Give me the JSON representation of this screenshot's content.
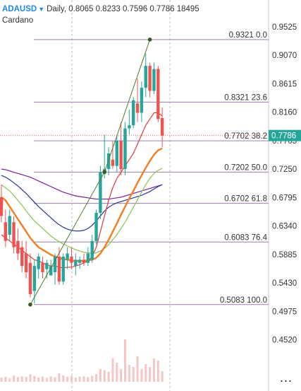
{
  "header": {
    "symbol": "ADAUSD",
    "caret_icon": "caret-down-icon",
    "ohlcv": "Daily, 0.8065 0.8233 0.7596 0.7786 18495",
    "subtitle": "Cardano"
  },
  "menu": {
    "icon": "more-horizontal-icon",
    "label": "..."
  },
  "chart_data": {
    "type": "candlestick",
    "title": "ADAUSD Daily",
    "subtitle": "Cardano",
    "ohlc_header": {
      "open": 0.8065,
      "high": 0.8233,
      "low": 0.7596,
      "close": 0.7786,
      "volume": 18495
    },
    "last_price": "0.7786",
    "ylim": [
      0.43,
      0.975
    ],
    "y_ticks": [
      "0.9525",
      "0.9070",
      "0.8615",
      "0.8160",
      "0.7705",
      "0.7250",
      "0.6795",
      "0.6340",
      "0.5885",
      "0.5430",
      "0.4975",
      "0.4520"
    ],
    "fib_levels": [
      {
        "price": 0.9321,
        "label": "0.9321 0.0"
      },
      {
        "price": 0.8321,
        "label": "0.8321 23.6"
      },
      {
        "price": 0.7702,
        "label": "0.7702 38.2"
      },
      {
        "price": 0.7202,
        "label": "0.7202 50.0"
      },
      {
        "price": 0.6702,
        "label": "0.6702 61.8"
      },
      {
        "price": 0.6083,
        "label": "0.6083 76.4"
      },
      {
        "price": 0.5083,
        "label": "0.5083 100.0"
      }
    ],
    "candles": [
      {
        "o": 0.68,
        "h": 0.7,
        "l": 0.64,
        "c": 0.65
      },
      {
        "o": 0.64,
        "h": 0.66,
        "l": 0.6,
        "c": 0.61
      },
      {
        "o": 0.62,
        "h": 0.66,
        "l": 0.61,
        "c": 0.65
      },
      {
        "o": 0.64,
        "h": 0.65,
        "l": 0.59,
        "c": 0.6
      },
      {
        "o": 0.61,
        "h": 0.63,
        "l": 0.58,
        "c": 0.59
      },
      {
        "o": 0.6,
        "h": 0.61,
        "l": 0.56,
        "c": 0.57
      },
      {
        "o": 0.59,
        "h": 0.61,
        "l": 0.55,
        "c": 0.56
      },
      {
        "o": 0.575,
        "h": 0.59,
        "l": 0.52,
        "c": 0.525
      },
      {
        "o": 0.53,
        "h": 0.58,
        "l": 0.51,
        "c": 0.57
      },
      {
        "o": 0.565,
        "h": 0.59,
        "l": 0.55,
        "c": 0.585
      },
      {
        "o": 0.575,
        "h": 0.585,
        "l": 0.55,
        "c": 0.56
      },
      {
        "o": 0.565,
        "h": 0.58,
        "l": 0.55,
        "c": 0.575
      },
      {
        "o": 0.555,
        "h": 0.58,
        "l": 0.555,
        "c": 0.57
      },
      {
        "o": 0.56,
        "h": 0.59,
        "l": 0.54,
        "c": 0.585
      },
      {
        "o": 0.585,
        "h": 0.6,
        "l": 0.54,
        "c": 0.545
      },
      {
        "o": 0.545,
        "h": 0.59,
        "l": 0.54,
        "c": 0.585
      },
      {
        "o": 0.58,
        "h": 0.6,
        "l": 0.565,
        "c": 0.59
      },
      {
        "o": 0.585,
        "h": 0.6,
        "l": 0.565,
        "c": 0.575
      },
      {
        "o": 0.57,
        "h": 0.59,
        "l": 0.555,
        "c": 0.58
      },
      {
        "o": 0.575,
        "h": 0.585,
        "l": 0.565,
        "c": 0.58
      },
      {
        "o": 0.58,
        "h": 0.59,
        "l": 0.57,
        "c": 0.575
      },
      {
        "o": 0.575,
        "h": 0.6,
        "l": 0.57,
        "c": 0.59
      },
      {
        "o": 0.58,
        "h": 0.62,
        "l": 0.575,
        "c": 0.61
      },
      {
        "o": 0.61,
        "h": 0.66,
        "l": 0.605,
        "c": 0.655
      },
      {
        "o": 0.655,
        "h": 0.73,
        "l": 0.645,
        "c": 0.72
      },
      {
        "o": 0.72,
        "h": 0.78,
        "l": 0.71,
        "c": 0.725
      },
      {
        "o": 0.725,
        "h": 0.76,
        "l": 0.715,
        "c": 0.75
      },
      {
        "o": 0.74,
        "h": 0.77,
        "l": 0.725,
        "c": 0.73
      },
      {
        "o": 0.73,
        "h": 0.78,
        "l": 0.72,
        "c": 0.77
      },
      {
        "o": 0.77,
        "h": 0.8,
        "l": 0.715,
        "c": 0.725
      },
      {
        "o": 0.725,
        "h": 0.8,
        "l": 0.715,
        "c": 0.79
      },
      {
        "o": 0.79,
        "h": 0.82,
        "l": 0.78,
        "c": 0.795
      },
      {
        "o": 0.795,
        "h": 0.84,
        "l": 0.79,
        "c": 0.835
      },
      {
        "o": 0.83,
        "h": 0.87,
        "l": 0.8,
        "c": 0.815
      },
      {
        "o": 0.815,
        "h": 0.865,
        "l": 0.8,
        "c": 0.855
      },
      {
        "o": 0.855,
        "h": 0.91,
        "l": 0.84,
        "c": 0.89
      },
      {
        "o": 0.89,
        "h": 0.895,
        "l": 0.84,
        "c": 0.85
      },
      {
        "o": 0.85,
        "h": 0.895,
        "l": 0.845,
        "c": 0.885
      },
      {
        "o": 0.885,
        "h": 0.89,
        "l": 0.8,
        "c": 0.805
      },
      {
        "o": 0.8065,
        "h": 0.8233,
        "l": 0.7596,
        "c": 0.7786
      }
    ],
    "ma_red": [
      0.62,
      0.615,
      0.61,
      0.605,
      0.6,
      0.595,
      0.59,
      0.585,
      0.58,
      0.578,
      0.575,
      0.572,
      0.57,
      0.57,
      0.568,
      0.567,
      0.568,
      0.568,
      0.57,
      0.572,
      0.575,
      0.578,
      0.585,
      0.6,
      0.625,
      0.65,
      0.675,
      0.695,
      0.71,
      0.72,
      0.73,
      0.74,
      0.75,
      0.765,
      0.78,
      0.795,
      0.805,
      0.815,
      0.815,
      0.81
    ],
    "ma_orange": [
      0.68,
      0.675,
      0.665,
      0.655,
      0.645,
      0.635,
      0.625,
      0.615,
      0.607,
      0.6,
      0.596,
      0.592,
      0.588,
      0.585,
      0.583,
      0.581,
      0.58,
      0.579,
      0.578,
      0.578,
      0.578,
      0.579,
      0.58,
      0.583,
      0.59,
      0.6,
      0.612,
      0.625,
      0.638,
      0.652,
      0.665,
      0.678,
      0.69,
      0.703,
      0.715,
      0.727,
      0.738,
      0.748,
      0.755,
      0.758
    ],
    "ma_green": [
      0.7,
      0.695,
      0.69,
      0.683,
      0.675,
      0.667,
      0.658,
      0.65,
      0.642,
      0.636,
      0.63,
      0.624,
      0.618,
      0.613,
      0.609,
      0.605,
      0.602,
      0.599,
      0.596,
      0.594,
      0.592,
      0.591,
      0.59,
      0.591,
      0.594,
      0.598,
      0.604,
      0.612,
      0.62,
      0.63,
      0.64,
      0.652,
      0.664,
      0.676,
      0.688,
      0.7,
      0.71,
      0.718,
      0.723,
      0.726
    ],
    "ma_navy": [
      0.715,
      0.712,
      0.708,
      0.703,
      0.698,
      0.692,
      0.686,
      0.679,
      0.672,
      0.665,
      0.659,
      0.653,
      0.647,
      0.641,
      0.636,
      0.632,
      0.629,
      0.627,
      0.626,
      0.626,
      0.627,
      0.63,
      0.635,
      0.642,
      0.65,
      0.658,
      0.664,
      0.668,
      0.671,
      0.673,
      0.675,
      0.677,
      0.679,
      0.681,
      0.683,
      0.686,
      0.689,
      0.693,
      0.697,
      0.7
    ],
    "ma_purple": [
      0.725,
      0.724,
      0.722,
      0.72,
      0.718,
      0.716,
      0.714,
      0.712,
      0.709,
      0.706,
      0.703,
      0.7,
      0.697,
      0.694,
      0.691,
      0.688,
      0.686,
      0.684,
      0.682,
      0.681,
      0.68,
      0.679,
      0.678,
      0.677,
      0.677,
      0.677,
      0.677,
      0.678,
      0.679,
      0.68,
      0.682,
      0.684,
      0.686,
      0.688,
      0.69,
      0.692,
      0.694,
      0.696,
      0.698,
      0.7
    ],
    "trend_points": [
      {
        "index": 7,
        "price": 0.5083
      },
      {
        "index": 25,
        "price": 0.7202
      },
      {
        "index": 36,
        "price": 0.9321
      }
    ],
    "volume": [
      0.1,
      0.12,
      0.08,
      0.15,
      0.11,
      0.13,
      0.12,
      0.18,
      0.14,
      0.1,
      0.12,
      0.09,
      0.13,
      0.11,
      0.2,
      0.15,
      0.12,
      0.14,
      0.1,
      0.12,
      0.13,
      0.11,
      0.14,
      0.18,
      0.3,
      0.28,
      0.24,
      0.55,
      0.45,
      0.3,
      1.0,
      0.4,
      0.35,
      0.6,
      0.3,
      0.42,
      0.35,
      0.55,
      0.5,
      0.25
    ],
    "colors": {
      "up": "#26a69a",
      "down": "#ef5350",
      "fib": "#9c7ab6",
      "trend": "#4e7a2c",
      "price_tag": "#26a69a",
      "ma_red": "#e53935",
      "ma_orange": "#f57c1f",
      "ma_green": "#8bc34a",
      "ma_navy": "#283593",
      "ma_purple": "#7b1fa2"
    }
  }
}
